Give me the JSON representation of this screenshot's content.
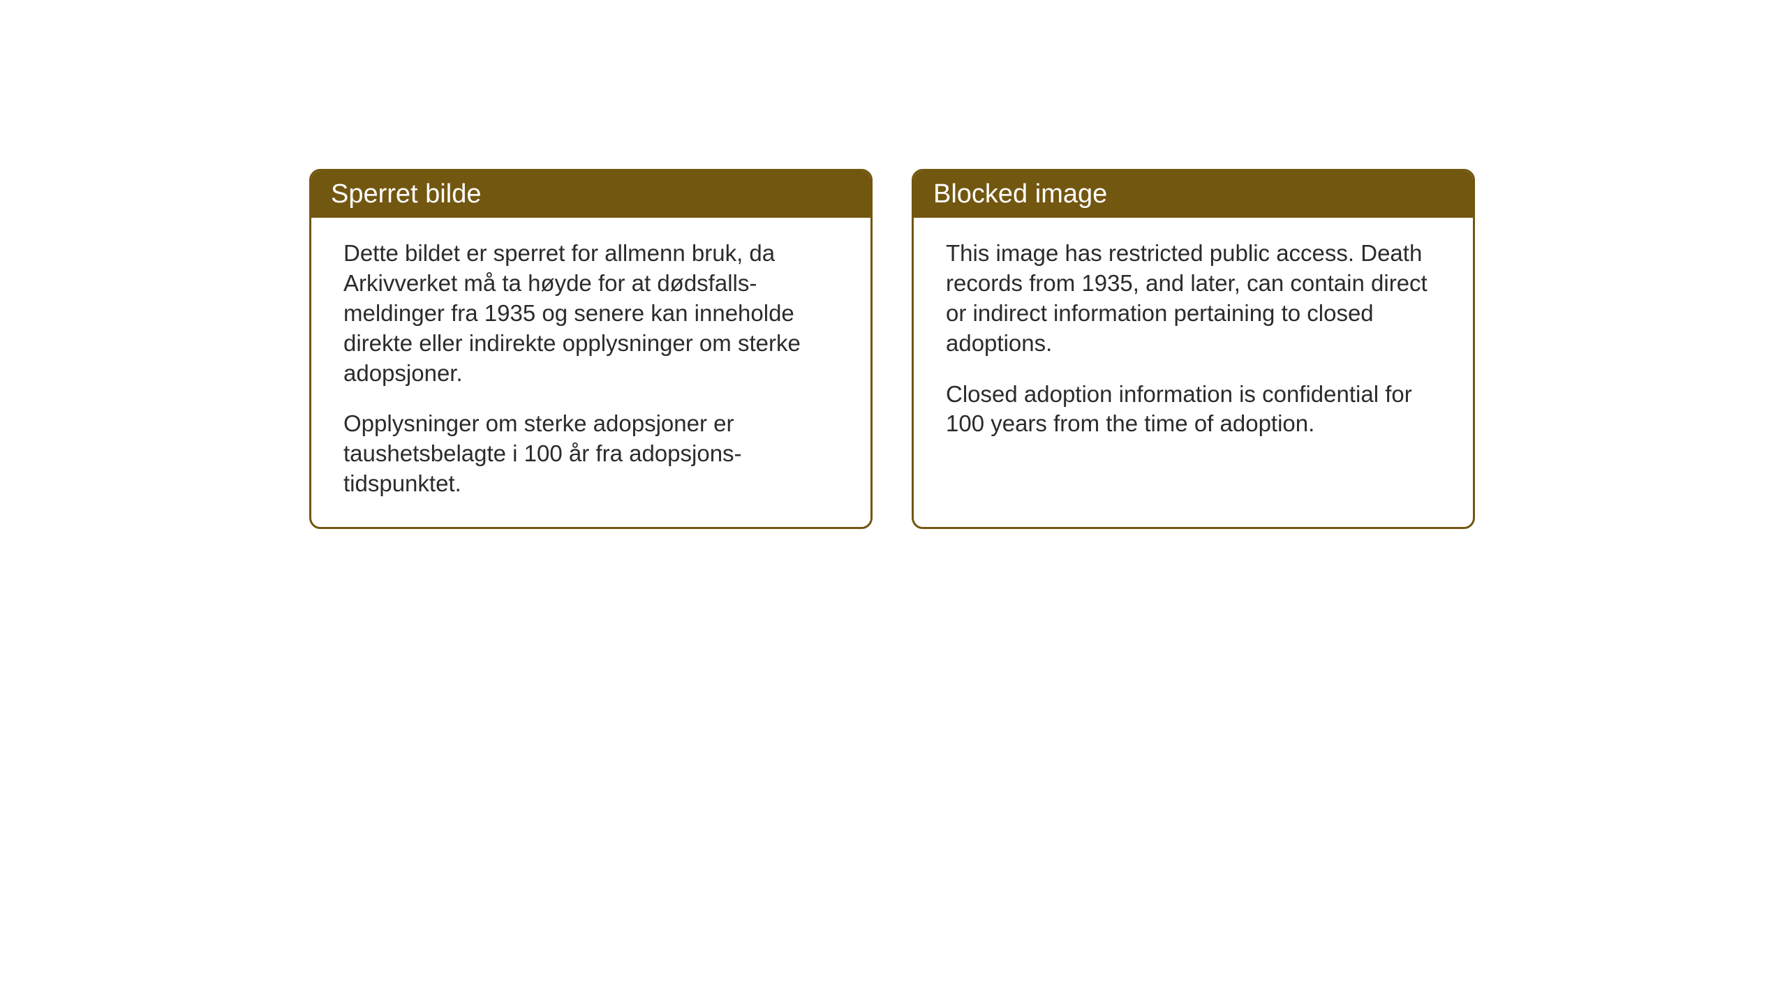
{
  "layout": {
    "background_color": "#ffffff",
    "card_border_color": "#725711",
    "card_border_width": 3,
    "card_border_radius": 16,
    "header_background": "#725711",
    "header_text_color": "#ffffff",
    "body_text_color": "#2b2b2b",
    "header_fontsize": 38,
    "body_fontsize": 33
  },
  "cards": {
    "norwegian": {
      "title": "Sperret bilde",
      "paragraph1": "Dette bildet er sperret for allmenn bruk, da Arkivverket må ta høyde for at dødsfalls-meldinger fra 1935 og senere kan inneholde direkte eller indirekte opplysninger om sterke adopsjoner.",
      "paragraph2": "Opplysninger om sterke adopsjoner er taushetsbelagte i 100 år fra adopsjons-tidspunktet."
    },
    "english": {
      "title": "Blocked image",
      "paragraph1": "This image has restricted public access. Death records from 1935, and later, can contain direct or indirect information pertaining to closed adoptions.",
      "paragraph2": "Closed adoption information is confidential for 100 years from the time of adoption."
    }
  }
}
